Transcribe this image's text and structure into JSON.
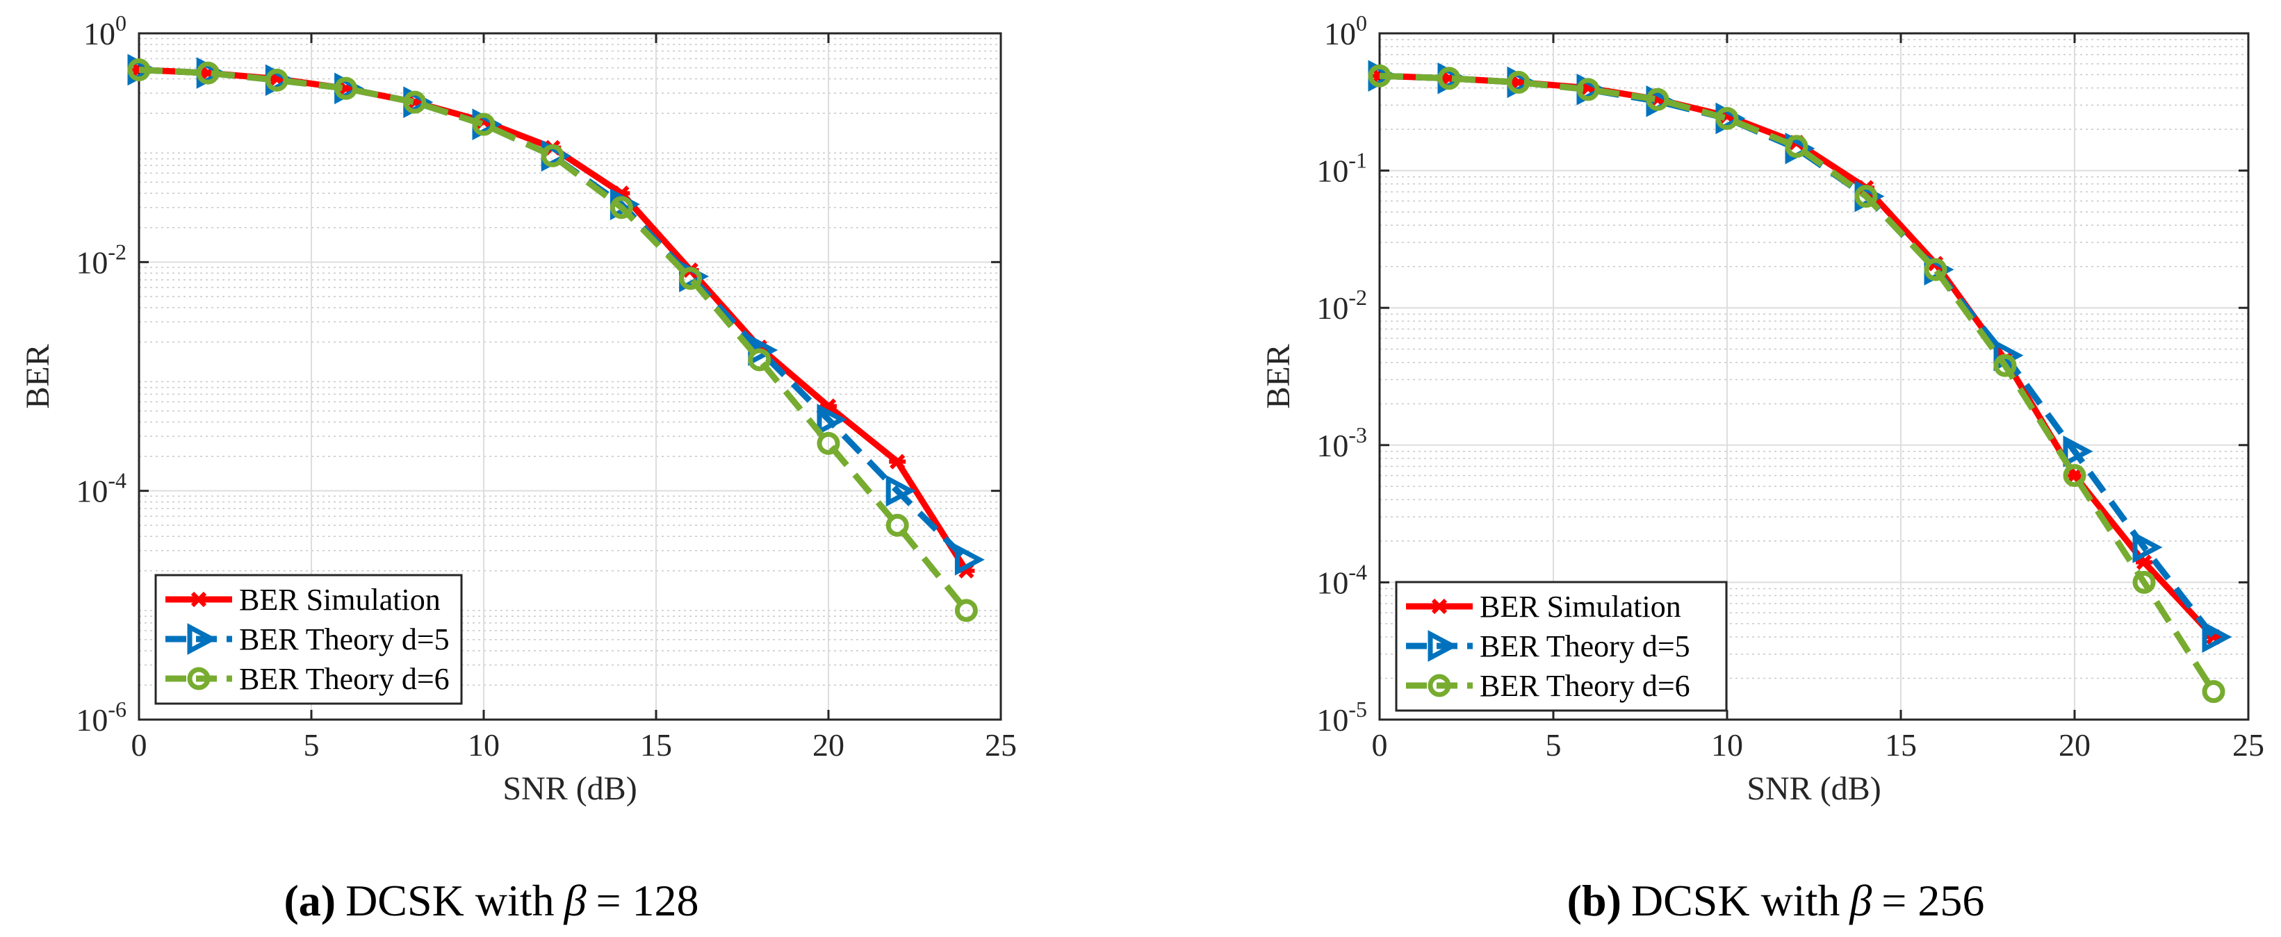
{
  "figure": {
    "style": {
      "background": "#ffffff",
      "axis_color": "#262626",
      "grid_color": "#dddddd",
      "minor_grid_color": "#c8c8c8"
    },
    "series_styles": [
      {
        "name": "BER Simulation",
        "color": "#ff0000",
        "dash": "solid",
        "marker": "x-star"
      },
      {
        "name": "BER Theory d=5",
        "color": "#0072bd",
        "dash": "dashed",
        "marker": "triangle-right"
      },
      {
        "name": "BER Theory d=6",
        "color": "#77ac30",
        "dash": "dashed",
        "marker": "circle"
      }
    ]
  },
  "chart_data": [
    {
      "type": "line",
      "yscale": "log",
      "caption": {
        "label": "(a)",
        "text": "DCSK with",
        "symbol": "β",
        "equals": "= 128"
      },
      "xlabel": "SNR (dB)",
      "ylabel": "BER",
      "xlim": [
        0,
        25
      ],
      "ylim": [
        1e-06,
        1
      ],
      "grid": true,
      "legend_position": "bottom-left",
      "x_ticks": [
        0,
        5,
        10,
        15,
        20,
        25
      ],
      "x_tick_labels": [
        "0",
        "5",
        "10",
        "15",
        "20",
        "25"
      ],
      "y_ticks": [
        {
          "value": 1e-06,
          "base": "10",
          "exp": "-6"
        },
        {
          "value": 0.0001,
          "base": "10",
          "exp": "-4"
        },
        {
          "value": 0.01,
          "base": "10",
          "exp": "-2"
        },
        {
          "value": 1,
          "base": "10",
          "exp": "0"
        }
      ],
      "x": [
        0,
        2,
        4,
        6,
        8,
        10,
        12,
        14,
        16,
        18,
        20,
        22,
        24
      ],
      "series": [
        {
          "name": "BER Simulation",
          "values": [
            0.48,
            0.45,
            0.4,
            0.33,
            0.25,
            0.17,
            0.1,
            0.04,
            0.0085,
            0.0018,
            0.00055,
            0.00018,
            2e-05
          ]
        },
        {
          "name": "BER Theory d=5",
          "values": [
            0.48,
            0.45,
            0.39,
            0.33,
            0.25,
            0.16,
            0.085,
            0.032,
            0.0075,
            0.0017,
            0.00042,
            0.0001,
            2.5e-05
          ]
        },
        {
          "name": "BER Theory d=6",
          "values": [
            0.48,
            0.45,
            0.39,
            0.33,
            0.25,
            0.16,
            0.085,
            0.03,
            0.0072,
            0.0014,
            0.00026,
            5e-05,
            9e-06
          ]
        }
      ]
    },
    {
      "type": "line",
      "yscale": "log",
      "caption": {
        "label": "(b)",
        "text": "DCSK with",
        "symbol": "β",
        "equals": "= 256"
      },
      "xlabel": "SNR (dB)",
      "ylabel": "BER",
      "xlim": [
        0,
        25
      ],
      "ylim": [
        1e-05,
        1
      ],
      "grid": true,
      "legend_position": "bottom-left",
      "x_ticks": [
        0,
        5,
        10,
        15,
        20,
        25
      ],
      "x_tick_labels": [
        "0",
        "5",
        "10",
        "15",
        "20",
        "25"
      ],
      "y_ticks": [
        {
          "value": 1e-05,
          "base": "10",
          "exp": "-5"
        },
        {
          "value": 0.0001,
          "base": "10",
          "exp": "-4"
        },
        {
          "value": 0.001,
          "base": "10",
          "exp": "-3"
        },
        {
          "value": 0.01,
          "base": "10",
          "exp": "-2"
        },
        {
          "value": 0.1,
          "base": "10",
          "exp": "-1"
        },
        {
          "value": 1,
          "base": "10",
          "exp": "0"
        }
      ],
      "x": [
        0,
        2,
        4,
        6,
        8,
        10,
        12,
        14,
        16,
        18,
        20,
        22,
        24
      ],
      "series": [
        {
          "name": "BER Simulation",
          "values": [
            0.49,
            0.47,
            0.44,
            0.4,
            0.33,
            0.25,
            0.16,
            0.075,
            0.021,
            0.0042,
            0.0006,
            0.00014,
            4e-05
          ]
        },
        {
          "name": "BER Theory d=5",
          "values": [
            0.49,
            0.47,
            0.44,
            0.39,
            0.32,
            0.24,
            0.145,
            0.065,
            0.019,
            0.0045,
            0.0009,
            0.00018,
            4e-05
          ]
        },
        {
          "name": "BER Theory d=6",
          "values": [
            0.49,
            0.47,
            0.44,
            0.39,
            0.33,
            0.24,
            0.15,
            0.065,
            0.019,
            0.0038,
            0.0006,
            0.0001,
            1.6e-05
          ]
        }
      ]
    }
  ]
}
